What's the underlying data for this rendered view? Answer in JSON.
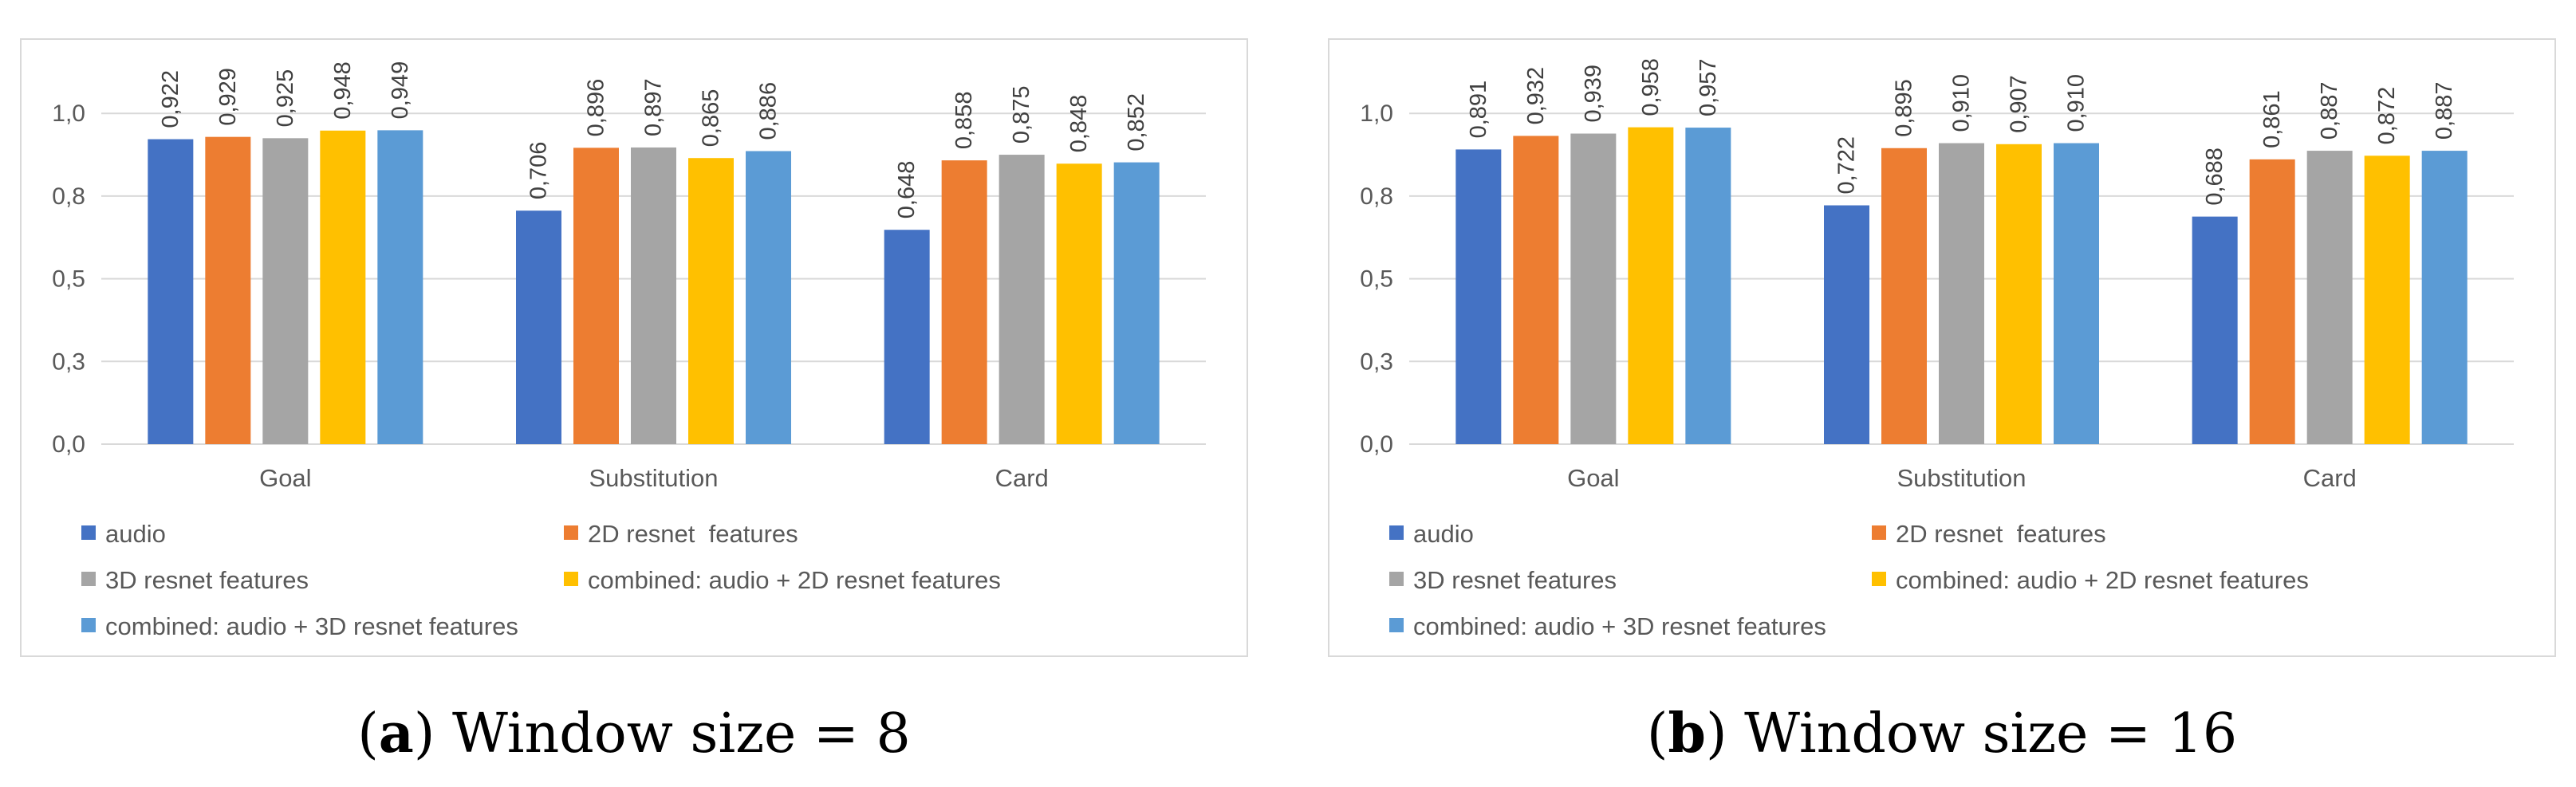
{
  "colors": {
    "audio": "#4472C4",
    "resnet2d": "#ED7D31",
    "resnet3d": "#A5A5A5",
    "combined2d": "#FFC000",
    "combined3d": "#5B9BD5",
    "grid": "#d9d9d9",
    "text": "#595959"
  },
  "chart_data": [
    {
      "type": "bar",
      "caption_letter": "a",
      "caption_text": "Window size = 8",
      "categories": [
        "Goal",
        "Substitution",
        "Card"
      ],
      "ylim": [
        0,
        1.15
      ],
      "yticks": [
        0.0,
        0.25,
        0.5,
        0.75,
        1.0
      ],
      "ytick_labels": [
        "0,0",
        "0,3",
        "0,5",
        "0,8",
        "1,0"
      ],
      "series": [
        {
          "name": "audio",
          "values": [
            0.922,
            0.706,
            0.648
          ],
          "labels": [
            "0,922",
            "0,706",
            "0,648"
          ]
        },
        {
          "name": "2D resnet  features",
          "values": [
            0.929,
            0.896,
            0.858
          ],
          "labels": [
            "0,929",
            "0,896",
            "0,858"
          ]
        },
        {
          "name": "3D resnet features",
          "values": [
            0.925,
            0.897,
            0.875
          ],
          "labels": [
            "0,925",
            "0,897",
            "0,875"
          ]
        },
        {
          "name": "combined: audio + 2D resnet features",
          "values": [
            0.948,
            0.865,
            0.848
          ],
          "labels": [
            "0,948",
            "0,865",
            "0,848"
          ]
        },
        {
          "name": "combined: audio + 3D resnet features",
          "values": [
            0.949,
            0.886,
            0.852
          ],
          "labels": [
            "0,949",
            "0,886",
            "0,852"
          ]
        }
      ],
      "legend_position": "bottom"
    },
    {
      "type": "bar",
      "caption_letter": "b",
      "caption_text": "Window size = 16",
      "categories": [
        "Goal",
        "Substitution",
        "Card"
      ],
      "ylim": [
        0,
        1.15
      ],
      "yticks": [
        0.0,
        0.25,
        0.5,
        0.75,
        1.0
      ],
      "ytick_labels": [
        "0,0",
        "0,3",
        "0,5",
        "0,8",
        "1,0"
      ],
      "series": [
        {
          "name": "audio",
          "values": [
            0.891,
            0.722,
            0.688
          ],
          "labels": [
            "0,891",
            "0,722",
            "0,688"
          ]
        },
        {
          "name": "2D resnet  features",
          "values": [
            0.932,
            0.895,
            0.861
          ],
          "labels": [
            "0,932",
            "0,895",
            "0,861"
          ]
        },
        {
          "name": "3D resnet features",
          "values": [
            0.939,
            0.91,
            0.887
          ],
          "labels": [
            "0,939",
            "0,910",
            "0,887"
          ]
        },
        {
          "name": "combined: audio + 2D resnet features",
          "values": [
            0.958,
            0.907,
            0.872
          ],
          "labels": [
            "0,958",
            "0,907",
            "0,872"
          ]
        },
        {
          "name": "combined: audio + 3D resnet features",
          "values": [
            0.957,
            0.91,
            0.887
          ],
          "labels": [
            "0,957",
            "0,910",
            "0,887"
          ]
        }
      ],
      "legend_position": "bottom"
    }
  ]
}
